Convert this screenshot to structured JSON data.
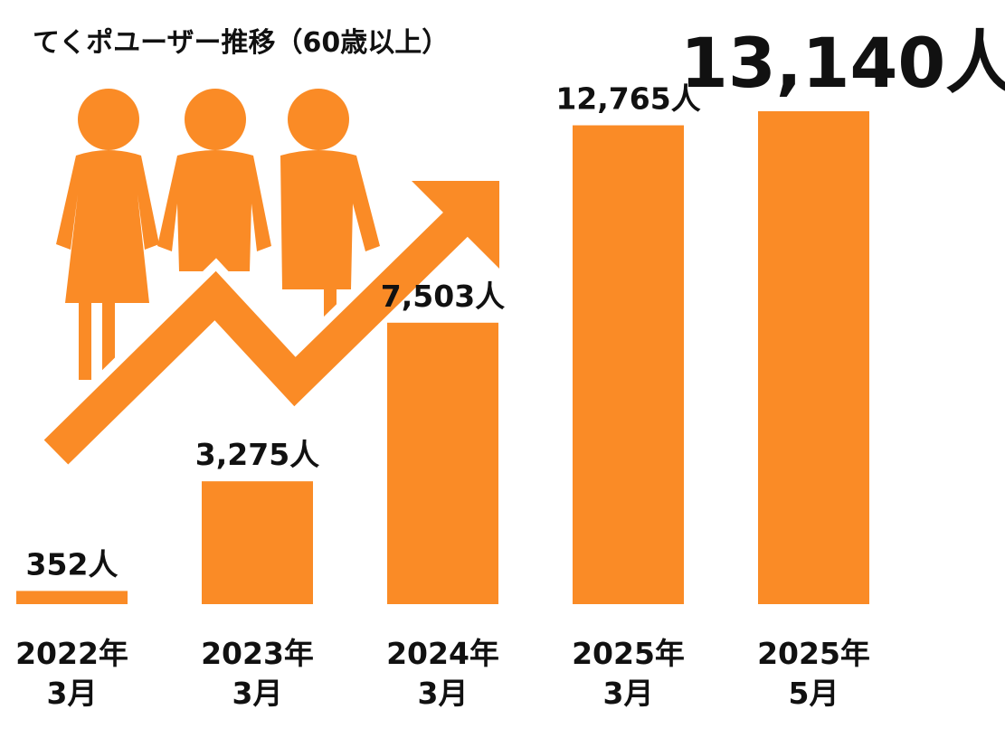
{
  "title": "てくポユーザー推移（60歳以上）",
  "headline_total": "13,140人",
  "colors": {
    "bar": "#FA8B26",
    "text": "#111111",
    "background": "#FFFFFF"
  },
  "decoration": {
    "people_icon": "three-people-icon",
    "arrow_icon": "zigzag-up-arrow-icon"
  },
  "chart_data": {
    "type": "bar",
    "categories": [
      [
        "2022年",
        "3月"
      ],
      [
        "2023年",
        "3月"
      ],
      [
        "2024年",
        "3月"
      ],
      [
        "2025年",
        "3月"
      ],
      [
        "2025年",
        "5月"
      ]
    ],
    "values": [
      352,
      3275,
      7503,
      12765,
      13140
    ],
    "data_labels": [
      "352人",
      "3,275人",
      "7,503人",
      "12,765人",
      ""
    ],
    "title": "てくポユーザー推移（60歳以上）",
    "xlabel": "",
    "ylabel": "",
    "ylim": [
      0,
      13140
    ],
    "grid": false,
    "legend": "none"
  }
}
